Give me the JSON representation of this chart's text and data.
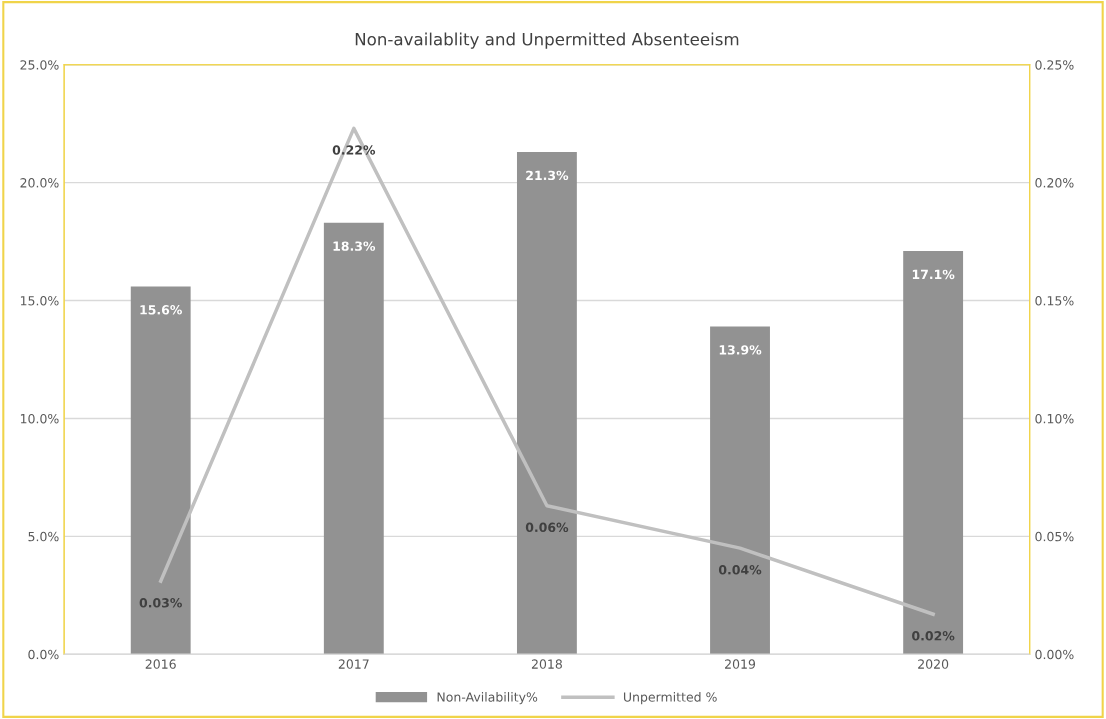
{
  "chart_data": {
    "type": "bar",
    "title": "Non-availablity and Unpermitted Absenteeism",
    "categories": [
      "2016",
      "2017",
      "2018",
      "2019",
      "2020"
    ],
    "series": [
      {
        "name": "Non-Avilability%",
        "color": "#929292",
        "values": [
          15.6,
          18.3,
          21.3,
          13.9,
          17.1
        ],
        "value_labels": [
          "15.6%",
          "18.3%",
          "21.3%",
          "13.9%",
          "17.1%"
        ]
      },
      {
        "name": "Unpermitted %",
        "type": "line",
        "axis": "y2",
        "color": "#c0c0c0",
        "values": [
          0.031,
          0.223,
          0.063,
          0.045,
          0.017
        ],
        "value_labels": [
          "0.03%",
          "0.22%",
          "0.06%",
          "0.04%",
          "0.02%"
        ]
      }
    ],
    "ylim": [
      0,
      25
    ],
    "yticks": [
      {
        "value": 0,
        "label": "0.0%"
      },
      {
        "value": 5,
        "label": "5.0%"
      },
      {
        "value": 10,
        "label": "10.0%"
      },
      {
        "value": 15,
        "label": "15.0%"
      },
      {
        "value": 20,
        "label": "20.0%"
      },
      {
        "value": 25,
        "label": "25.0%"
      }
    ],
    "y2lim": [
      0,
      0.25
    ],
    "y2ticks": [
      {
        "value": 0,
        "label": "0.00%"
      },
      {
        "value": 0.05,
        "label": "0.05%"
      },
      {
        "value": 0.1,
        "label": "0.10%"
      },
      {
        "value": 0.15,
        "label": "0.15%"
      },
      {
        "value": 0.2,
        "label": "0.20%"
      },
      {
        "value": 0.25,
        "label": "0.25%"
      }
    ],
    "grid": "y",
    "legend": "bottom",
    "marker": "none",
    "line_style": "solid"
  }
}
